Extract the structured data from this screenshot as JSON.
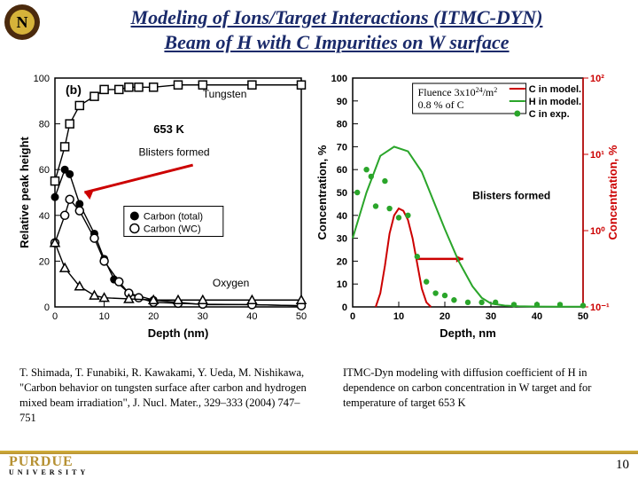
{
  "title": {
    "line1": "Modeling of Ions/Target Interactions (ITMC-DYN)",
    "line2": "Beam of H with C Impurities on W surface"
  },
  "footer": {
    "brand_top": "PURDUE",
    "brand_sub": "UNIVERSITY",
    "page": "10"
  },
  "caption_left": "T. Shimada, T. Funabiki, R. Kawakami, Y. Ueda, M. Nishikawa, \"Carbon behavior on tungsten surface after carbon and hydrogen mixed beam irradiation\", J. Nucl. Mater., 329–333 (2004) 747–751",
  "caption_right": "ITMC-Dyn modeling with diffusion coefficient of H in dependence on carbon concentration in W target and for temperature of target 653 K",
  "chart_left": {
    "type": "scatter-line",
    "panel_label": "(b)",
    "temp_label": "653 K",
    "arrow_label": "Blisters formed",
    "xlabel": "Depth (nm)",
    "ylabel": "Relative peak height",
    "xlim": [
      0,
      50
    ],
    "xtick_step": 10,
    "ylim": [
      0,
      100
    ],
    "ytick_step": 20,
    "legend": {
      "tungsten": "Tungsten",
      "carbon_total": "Carbon (total)",
      "carbon_wc": "Carbon (WC)",
      "oxygen": "Oxygen"
    },
    "series": {
      "tungsten": {
        "color": "#000000",
        "marker": "square-open",
        "line": true,
        "points": [
          [
            0,
            55
          ],
          [
            2,
            70
          ],
          [
            3,
            80
          ],
          [
            5,
            88
          ],
          [
            8,
            92
          ],
          [
            10,
            95
          ],
          [
            13,
            95
          ],
          [
            15,
            96
          ],
          [
            17,
            96
          ],
          [
            20,
            96
          ],
          [
            25,
            97
          ],
          [
            30,
            97
          ],
          [
            40,
            97
          ],
          [
            50,
            97
          ]
        ]
      },
      "carbon_total": {
        "color": "#000000",
        "marker": "circle-filled",
        "line": true,
        "points": [
          [
            0,
            48
          ],
          [
            2,
            60
          ],
          [
            3,
            58
          ],
          [
            5,
            45
          ],
          [
            8,
            32
          ],
          [
            10,
            21
          ],
          [
            12,
            12
          ],
          [
            15,
            6
          ],
          [
            20,
            3
          ],
          [
            25,
            2
          ],
          [
            30,
            1
          ],
          [
            40,
            1
          ],
          [
            50,
            0.5
          ]
        ]
      },
      "carbon_wc": {
        "color": "#000000",
        "marker": "circle-open",
        "line": true,
        "points": [
          [
            0,
            28
          ],
          [
            2,
            40
          ],
          [
            3,
            47
          ],
          [
            5,
            42
          ],
          [
            8,
            30
          ],
          [
            10,
            20
          ],
          [
            13,
            11
          ],
          [
            15,
            6
          ],
          [
            17,
            4
          ],
          [
            20,
            2
          ],
          [
            25,
            1.6
          ],
          [
            30,
            1.2
          ],
          [
            40,
            1
          ],
          [
            50,
            0.5
          ]
        ]
      },
      "oxygen": {
        "color": "#000000",
        "marker": "triangle-open",
        "line": true,
        "points": [
          [
            0,
            28
          ],
          [
            2,
            17
          ],
          [
            5,
            9
          ],
          [
            8,
            5
          ],
          [
            10,
            4
          ],
          [
            15,
            3.5
          ],
          [
            20,
            3
          ],
          [
            25,
            3
          ],
          [
            30,
            3
          ],
          [
            40,
            3
          ],
          [
            50,
            3
          ]
        ]
      }
    },
    "axis_color": "#000000",
    "tick_fontsize": 11,
    "label_fontsize": 13,
    "background_color": "#ffffff"
  },
  "chart_right": {
    "type": "line+scatter-dual-axis",
    "box_text1": "Fluence 3x10",
    "box_sup": "24",
    "box_text1b": "/m",
    "box_sup2": "2",
    "box_text2": "0.8 % of C",
    "arrow_label": "Blisters formed",
    "xlabel": "Depth, nm",
    "ylabel_left": "Concentration, %",
    "ylabel_right": "Concentration, %",
    "xlim": [
      0,
      50
    ],
    "xtick_step": 10,
    "ylim_left": [
      0,
      100
    ],
    "ytick_step_left": 10,
    "ylim_right_log": [
      0.1,
      100
    ],
    "legend": {
      "c_model": "C in model.",
      "h_model": "H in model.",
      "c_exp": "C in exp."
    },
    "colors": {
      "c_model": "#cc0000",
      "h_model": "#2aa52a",
      "c_exp": "#2aa52a",
      "right_axis": "#cc0000",
      "box_border": "#000000",
      "grid": "#d8d8d8",
      "axis": "#000000"
    },
    "series": {
      "h_model_line": {
        "color": "#2aa52a",
        "line": true,
        "points": [
          [
            0,
            30
          ],
          [
            3,
            50
          ],
          [
            6,
            66
          ],
          [
            9,
            70
          ],
          [
            12,
            68
          ],
          [
            15,
            59
          ],
          [
            18,
            44
          ],
          [
            20,
            34
          ],
          [
            23,
            20
          ],
          [
            26,
            9
          ],
          [
            28,
            4
          ],
          [
            30,
            1.5
          ],
          [
            33,
            0.6
          ],
          [
            36,
            0.3
          ],
          [
            40,
            0.15
          ],
          [
            45,
            0.1
          ],
          [
            50,
            0.08
          ]
        ]
      },
      "c_model_line": {
        "color": "#cc0000",
        "line": true,
        "points": [
          [
            5,
            0
          ],
          [
            6,
            6
          ],
          [
            7,
            18
          ],
          [
            8,
            32
          ],
          [
            9,
            40
          ],
          [
            10,
            43
          ],
          [
            11,
            42
          ],
          [
            12,
            38
          ],
          [
            13,
            30
          ],
          [
            14,
            19
          ],
          [
            15,
            8
          ],
          [
            16,
            2
          ],
          [
            17,
            0
          ]
        ]
      },
      "c_exp_pts": {
        "color": "#2aa52a",
        "marker": "circle-filled",
        "points": [
          [
            1,
            50
          ],
          [
            3,
            60
          ],
          [
            4,
            57
          ],
          [
            5,
            44
          ],
          [
            7,
            55
          ],
          [
            8,
            43
          ],
          [
            10,
            39
          ],
          [
            12,
            40
          ],
          [
            14,
            22
          ],
          [
            16,
            11
          ],
          [
            18,
            6
          ],
          [
            20,
            5
          ],
          [
            22,
            3
          ],
          [
            25,
            2
          ],
          [
            28,
            2
          ],
          [
            31,
            2
          ],
          [
            35,
            1
          ],
          [
            40,
            1
          ],
          [
            45,
            1
          ],
          [
            50,
            0.6
          ]
        ]
      }
    },
    "tick_fontsize": 11,
    "label_fontsize": 13,
    "background_color": "#ffffff"
  }
}
